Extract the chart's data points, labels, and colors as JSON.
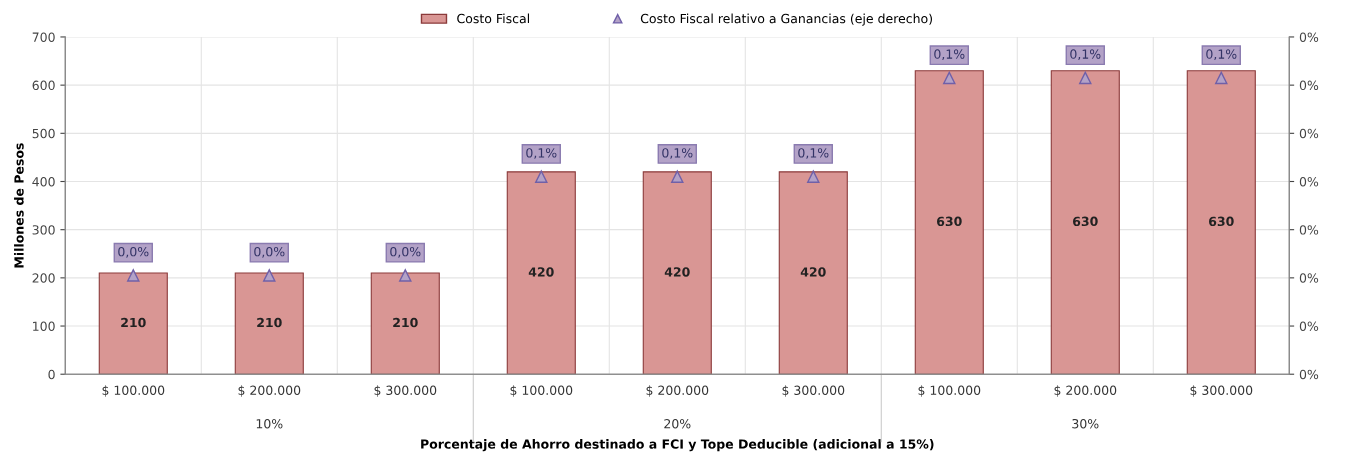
{
  "chart_data": {
    "type": "bar",
    "categories": [
      "$ 100.000",
      "$ 200.000",
      "$ 300.000",
      "$ 100.000",
      "$ 200.000",
      "$ 300.000",
      "$ 100.000",
      "$ 200.000",
      "$ 300.000"
    ],
    "xlabel": "Porcentaje de Ahorro destinado a FCI y Tope Deducible (adicional a 15%)",
    "ylabel": "Millones de Pesos",
    "annotations": [
      "10%",
      "20%",
      "30%"
    ],
    "series": [
      {
        "name": "Costo Fiscal",
        "color": "#d99694",
        "values": [
          210,
          210,
          210,
          420,
          420,
          420,
          630,
          630,
          630
        ],
        "data_labels": true
      },
      {
        "name": "Costo Fiscal relativo a Ganancias (eje derecho)",
        "type": "scatter",
        "axis": "y2",
        "marker": "triangle",
        "color": "#b3a2c7",
        "values": [
          0.041,
          0.041,
          0.041,
          0.082,
          0.082,
          0.082,
          0.123,
          0.123,
          0.123
        ],
        "value_labels": [
          "0,0%",
          "0,0%",
          "0,0%",
          "0,1%",
          "0,1%",
          "0,1%",
          "0,1%",
          "0,1%",
          "0,1%"
        ]
      }
    ],
    "ylim": [
      0,
      700
    ],
    "yticks": [
      0,
      100,
      200,
      300,
      400,
      500,
      600,
      700
    ],
    "y2lim": [
      0,
      0.14
    ],
    "y2ticks": [
      {
        "value": 0,
        "label": "0%"
      },
      {
        "value": 0.02,
        "label": "0%"
      },
      {
        "value": 0.04,
        "label": "0%"
      },
      {
        "value": 0.06,
        "label": "0%"
      },
      {
        "value": 0.08,
        "label": "0%"
      },
      {
        "value": 0.1,
        "label": "0%"
      },
      {
        "value": 0.12,
        "label": "0%"
      },
      {
        "value": 0.14,
        "label": "0%"
      }
    ],
    "grid": true,
    "legend": "top"
  }
}
